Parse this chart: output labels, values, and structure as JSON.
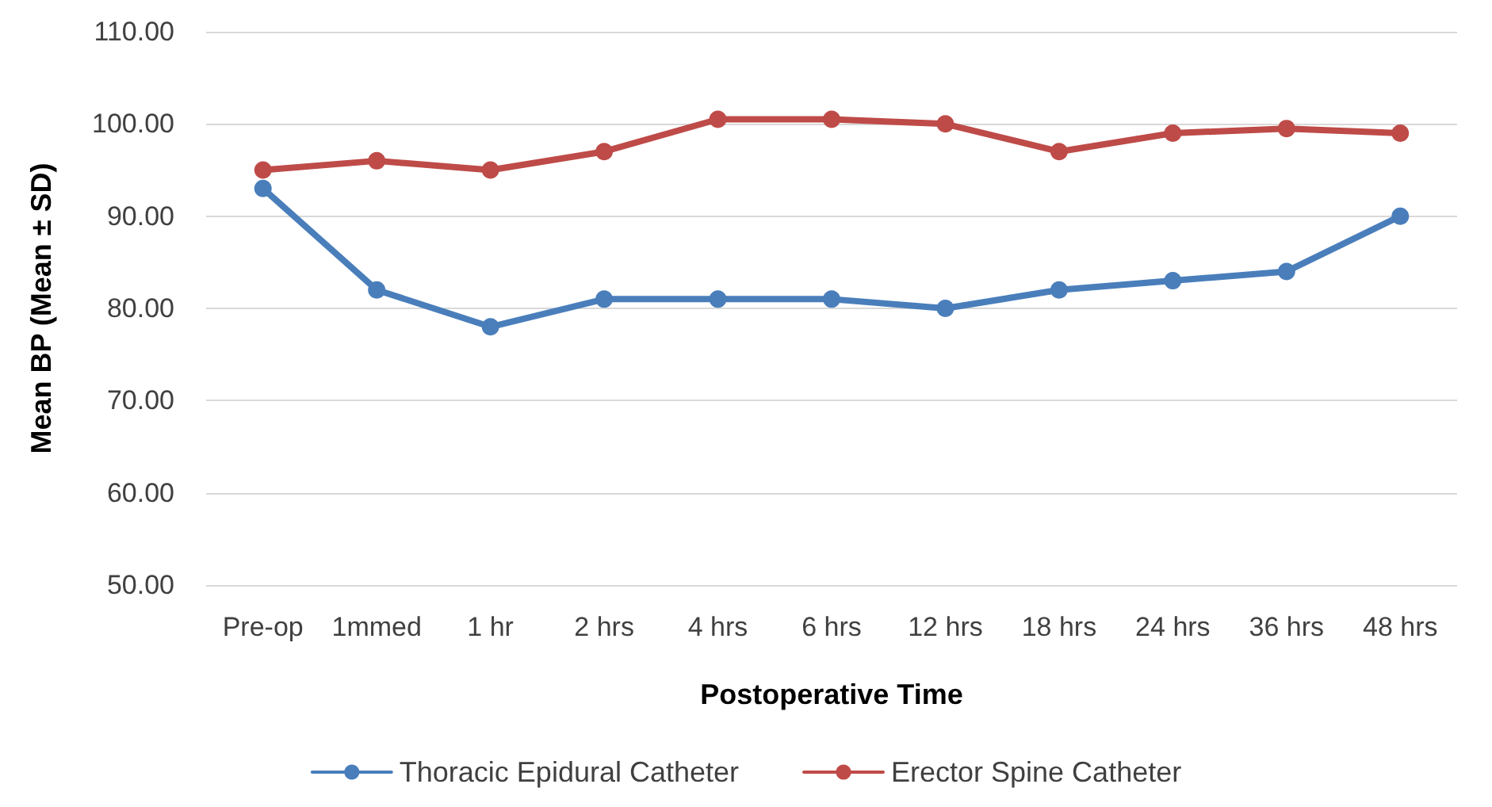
{
  "chart_data": {
    "type": "line",
    "xlabel": "Postoperative Time",
    "ylabel": "Mean BP (Mean ± SD)",
    "categories": [
      "Pre-op",
      "1mmed",
      "1 hr",
      "2 hrs",
      "4 hrs",
      "6 hrs",
      "12 hrs",
      "18 hrs",
      "24 hrs",
      "36 hrs",
      "48 hrs"
    ],
    "series": [
      {
        "name": "Thoracic Epidural Catheter",
        "color": "#4a7ebb",
        "values": [
          93,
          82,
          78,
          81,
          81,
          81,
          80,
          82,
          83,
          84,
          90
        ]
      },
      {
        "name": "Erector Spine Catheter",
        "color": "#be4b48",
        "values": [
          95,
          96,
          95,
          97,
          100.5,
          100.5,
          100,
          97,
          99,
          99.5,
          99
        ]
      }
    ],
    "ylim": [
      50,
      110
    ],
    "yticks": [
      {
        "value": 50,
        "label": "50.00"
      },
      {
        "value": 60,
        "label": "60.00"
      },
      {
        "value": 70,
        "label": "70.00"
      },
      {
        "value": 80,
        "label": "80.00"
      },
      {
        "value": 90,
        "label": "90.00"
      },
      {
        "value": 100,
        "label": "100.00"
      },
      {
        "value": 110,
        "label": "110.00"
      }
    ],
    "grid": "y",
    "legend": "bottom",
    "marker": "circle",
    "line_style": "solid"
  }
}
